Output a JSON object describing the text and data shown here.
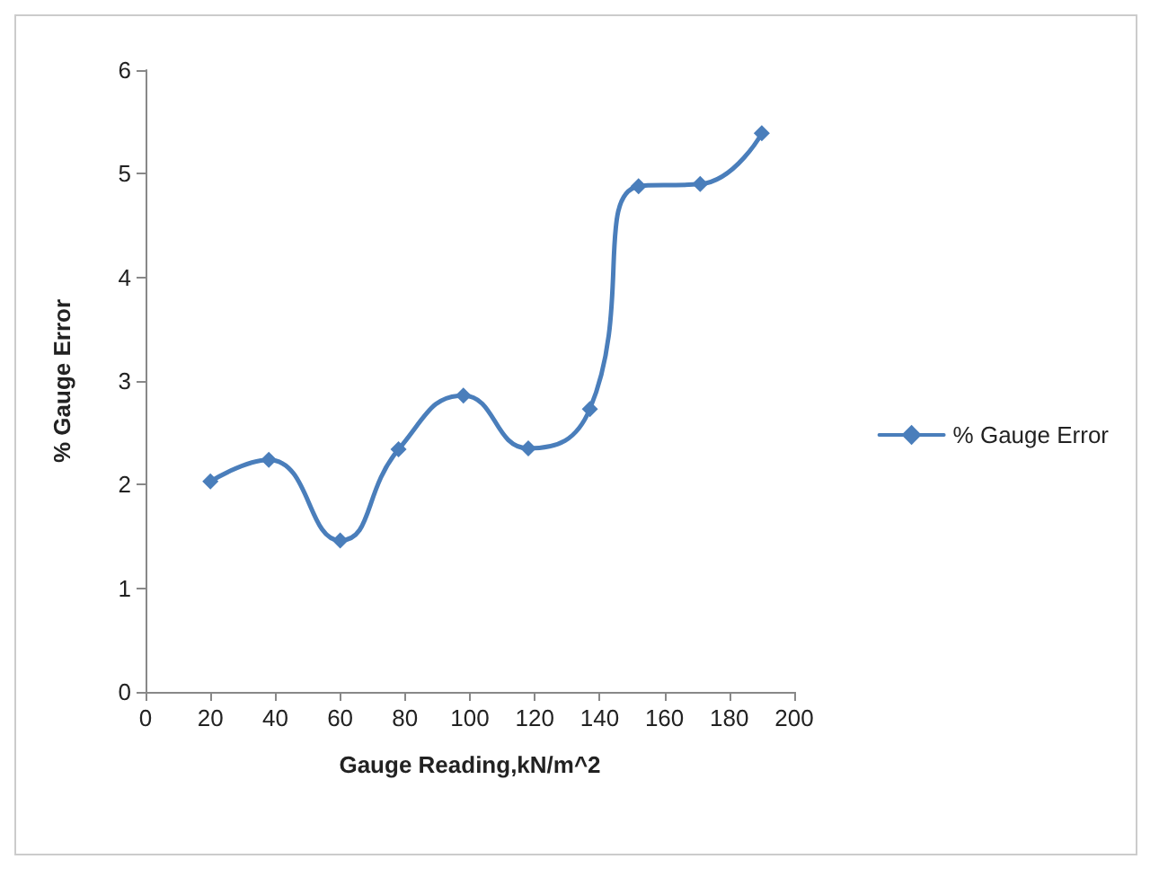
{
  "chart_data": {
    "type": "line",
    "xlabel": "Gauge Reading,kN/m^2",
    "ylabel": "% Gauge Error",
    "x": [
      20,
      38,
      60,
      78,
      98,
      118,
      137,
      152,
      171,
      190
    ],
    "series": [
      {
        "name": "% Gauge Error",
        "color": "#4a7ebb",
        "values": [
          2.03,
          2.24,
          1.46,
          2.34,
          2.86,
          2.35,
          2.73,
          4.88,
          4.9,
          5.39
        ]
      }
    ],
    "xlim": [
      0,
      200
    ],
    "xticks": [
      0,
      20,
      40,
      60,
      80,
      100,
      120,
      140,
      160,
      180,
      200
    ],
    "ylim": [
      0,
      6
    ],
    "yticks": [
      0,
      1,
      2,
      3,
      4,
      5,
      6
    ],
    "grid": false,
    "legend": "right",
    "marker": "diamond",
    "line_style": "solid"
  }
}
